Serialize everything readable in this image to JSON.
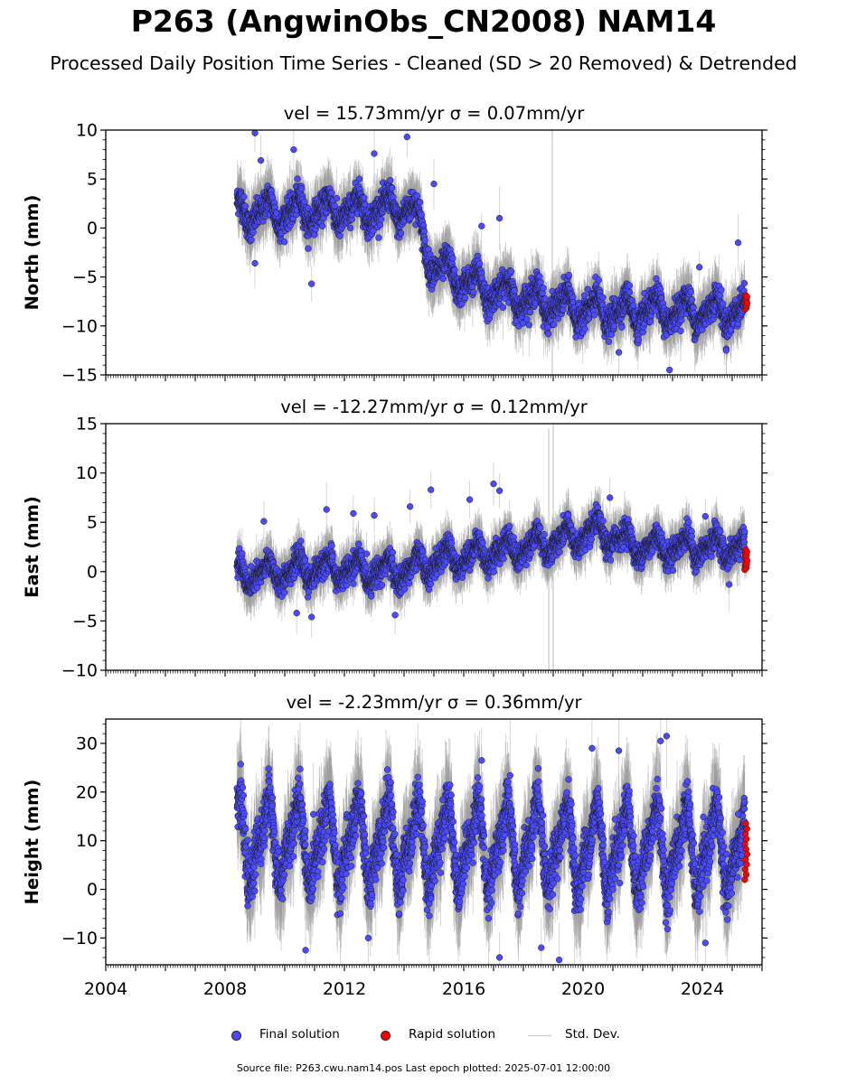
{
  "header": {
    "title": "P263 (AngwinObs_CN2008) NAM14",
    "subtitle": "Processed Daily Position Time Series - Cleaned (SD > 20 Removed) & Detrended"
  },
  "legend": {
    "items": [
      {
        "label": "Final solution",
        "color": "#4a4aff"
      },
      {
        "label": "Rapid solution",
        "color": "#ff0000"
      },
      {
        "label": "Std. Dev.",
        "color": "#c8c8c8"
      }
    ]
  },
  "footer": {
    "text": "Source file: P263.cwu.nam14.pos  Last epoch plotted: 2025-07-01 12:00:00"
  },
  "colors": {
    "final": "#4a4aff",
    "rapid": "#ff0000",
    "errorbar": "#9a9a9a",
    "marker_edge": "#1a1a1a"
  },
  "chart_data": [
    {
      "type": "scatter",
      "title": "vel = 15.73mm/yr   σ = 0.07mm/yr",
      "ylabel": "North (mm)",
      "xlabel": "",
      "xlim": [
        2004.0,
        2026.0
      ],
      "ylim": [
        -15,
        10
      ],
      "yticks": [
        -15,
        -10,
        -5,
        0,
        5,
        10
      ],
      "xticks": [
        2004,
        2008,
        2012,
        2016,
        2020,
        2024
      ],
      "show_xtick_labels": false,
      "grid": false,
      "final_start": 2008.4,
      "final_end": 2025.42,
      "final_trend": [
        [
          2008.4,
          1.5
        ],
        [
          2014.3,
          2.0
        ],
        [
          2015.0,
          -4.0
        ],
        [
          2016.5,
          -6.0
        ],
        [
          2018.5,
          -7.5
        ],
        [
          2020.5,
          -8.5
        ],
        [
          2025.4,
          -8.5
        ]
      ],
      "final_seasonal_amplitude": 1.2,
      "final_scatter": 1.3,
      "rapid_start": 2025.42,
      "rapid_end": 2025.5,
      "rapid_range": [
        -8.3,
        -6.9
      ],
      "outliers": [
        [
          2009.0,
          9.7
        ],
        [
          2014.1,
          9.3
        ],
        [
          2009.2,
          6.9
        ],
        [
          2010.3,
          8.0
        ],
        [
          2013.0,
          7.6
        ],
        [
          2010.9,
          -5.7
        ],
        [
          2009.0,
          -3.6
        ],
        [
          2015.0,
          4.5
        ],
        [
          2016.6,
          0.2
        ],
        [
          2017.2,
          1.0
        ],
        [
          2022.9,
          -14.5
        ],
        [
          2021.2,
          -12.7
        ],
        [
          2025.2,
          -1.5
        ],
        [
          2023.9,
          -4.0
        ],
        [
          2024.8,
          -12.5
        ]
      ],
      "errorbar_spikes": [
        [
          2018.97,
          -15,
          10
        ]
      ]
    },
    {
      "type": "scatter",
      "title": "vel = -12.27mm/yr   σ = 0.12mm/yr",
      "ylabel": "East (mm)",
      "xlabel": "",
      "xlim": [
        2004.0,
        2026.0
      ],
      "ylim": [
        -10,
        15
      ],
      "yticks": [
        -10,
        -5,
        0,
        5,
        10,
        15
      ],
      "xticks": [
        2004,
        2008,
        2012,
        2016,
        2020,
        2024
      ],
      "show_xtick_labels": false,
      "grid": false,
      "final_start": 2008.4,
      "final_end": 2025.42,
      "final_trend": [
        [
          2008.4,
          -0.5
        ],
        [
          2011.0,
          0.3
        ],
        [
          2014.0,
          0.0
        ],
        [
          2015.0,
          1.0
        ],
        [
          2017.0,
          2.0
        ],
        [
          2019.0,
          3.0
        ],
        [
          2020.5,
          4.0
        ],
        [
          2022.0,
          2.5
        ],
        [
          2025.4,
          2.5
        ]
      ],
      "final_seasonal_amplitude": 1.0,
      "final_scatter": 1.1,
      "rapid_start": 2025.42,
      "rapid_end": 2025.5,
      "rapid_range": [
        0.2,
        2.2
      ],
      "outliers": [
        [
          2009.3,
          5.1
        ],
        [
          2011.4,
          6.3
        ],
        [
          2012.3,
          5.9
        ],
        [
          2013.0,
          5.7
        ],
        [
          2014.2,
          6.6
        ],
        [
          2014.9,
          8.3
        ],
        [
          2016.2,
          7.3
        ],
        [
          2017.0,
          8.9
        ],
        [
          2017.2,
          8.2
        ],
        [
          2020.9,
          7.5
        ],
        [
          2024.1,
          5.6
        ],
        [
          2010.4,
          -4.2
        ],
        [
          2010.9,
          -4.6
        ],
        [
          2013.7,
          -4.4
        ],
        [
          2024.9,
          -1.3
        ]
      ],
      "errorbar_spikes": [
        [
          2018.85,
          -10,
          14.5
        ],
        [
          2019.0,
          -10,
          15
        ]
      ]
    },
    {
      "type": "scatter",
      "title": "vel = -2.23mm/yr   σ = 0.36mm/yr",
      "ylabel": "Height (mm)",
      "xlabel": "",
      "xlim": [
        2004.0,
        2026.0
      ],
      "ylim": [
        -15.5,
        35
      ],
      "yticks": [
        -10,
        0,
        10,
        20,
        30
      ],
      "xticks": [
        2004,
        2008,
        2012,
        2016,
        2020,
        2024
      ],
      "show_xtick_labels": true,
      "grid": false,
      "final_start": 2008.4,
      "final_end": 2025.42,
      "final_trend": [
        [
          2008.4,
          10.0
        ],
        [
          2025.4,
          8.0
        ]
      ],
      "final_seasonal_amplitude": 7.5,
      "final_scatter": 4.5,
      "rapid_start": 2025.42,
      "rapid_end": 2025.5,
      "rapid_range": [
        2.0,
        13.5
      ],
      "outliers": [
        [
          2010.7,
          -12.5
        ],
        [
          2016.6,
          26.5
        ],
        [
          2017.2,
          -14.0
        ],
        [
          2019.2,
          -14.5
        ],
        [
          2021.2,
          28.5
        ],
        [
          2022.6,
          30.5
        ],
        [
          2022.8,
          31.5
        ],
        [
          2020.3,
          29.0
        ],
        [
          2018.6,
          -12.0
        ],
        [
          2012.8,
          -10.0
        ],
        [
          2024.1,
          -11.0
        ],
        [
          2025.2,
          15.5
        ]
      ],
      "errorbar_spikes": []
    }
  ]
}
